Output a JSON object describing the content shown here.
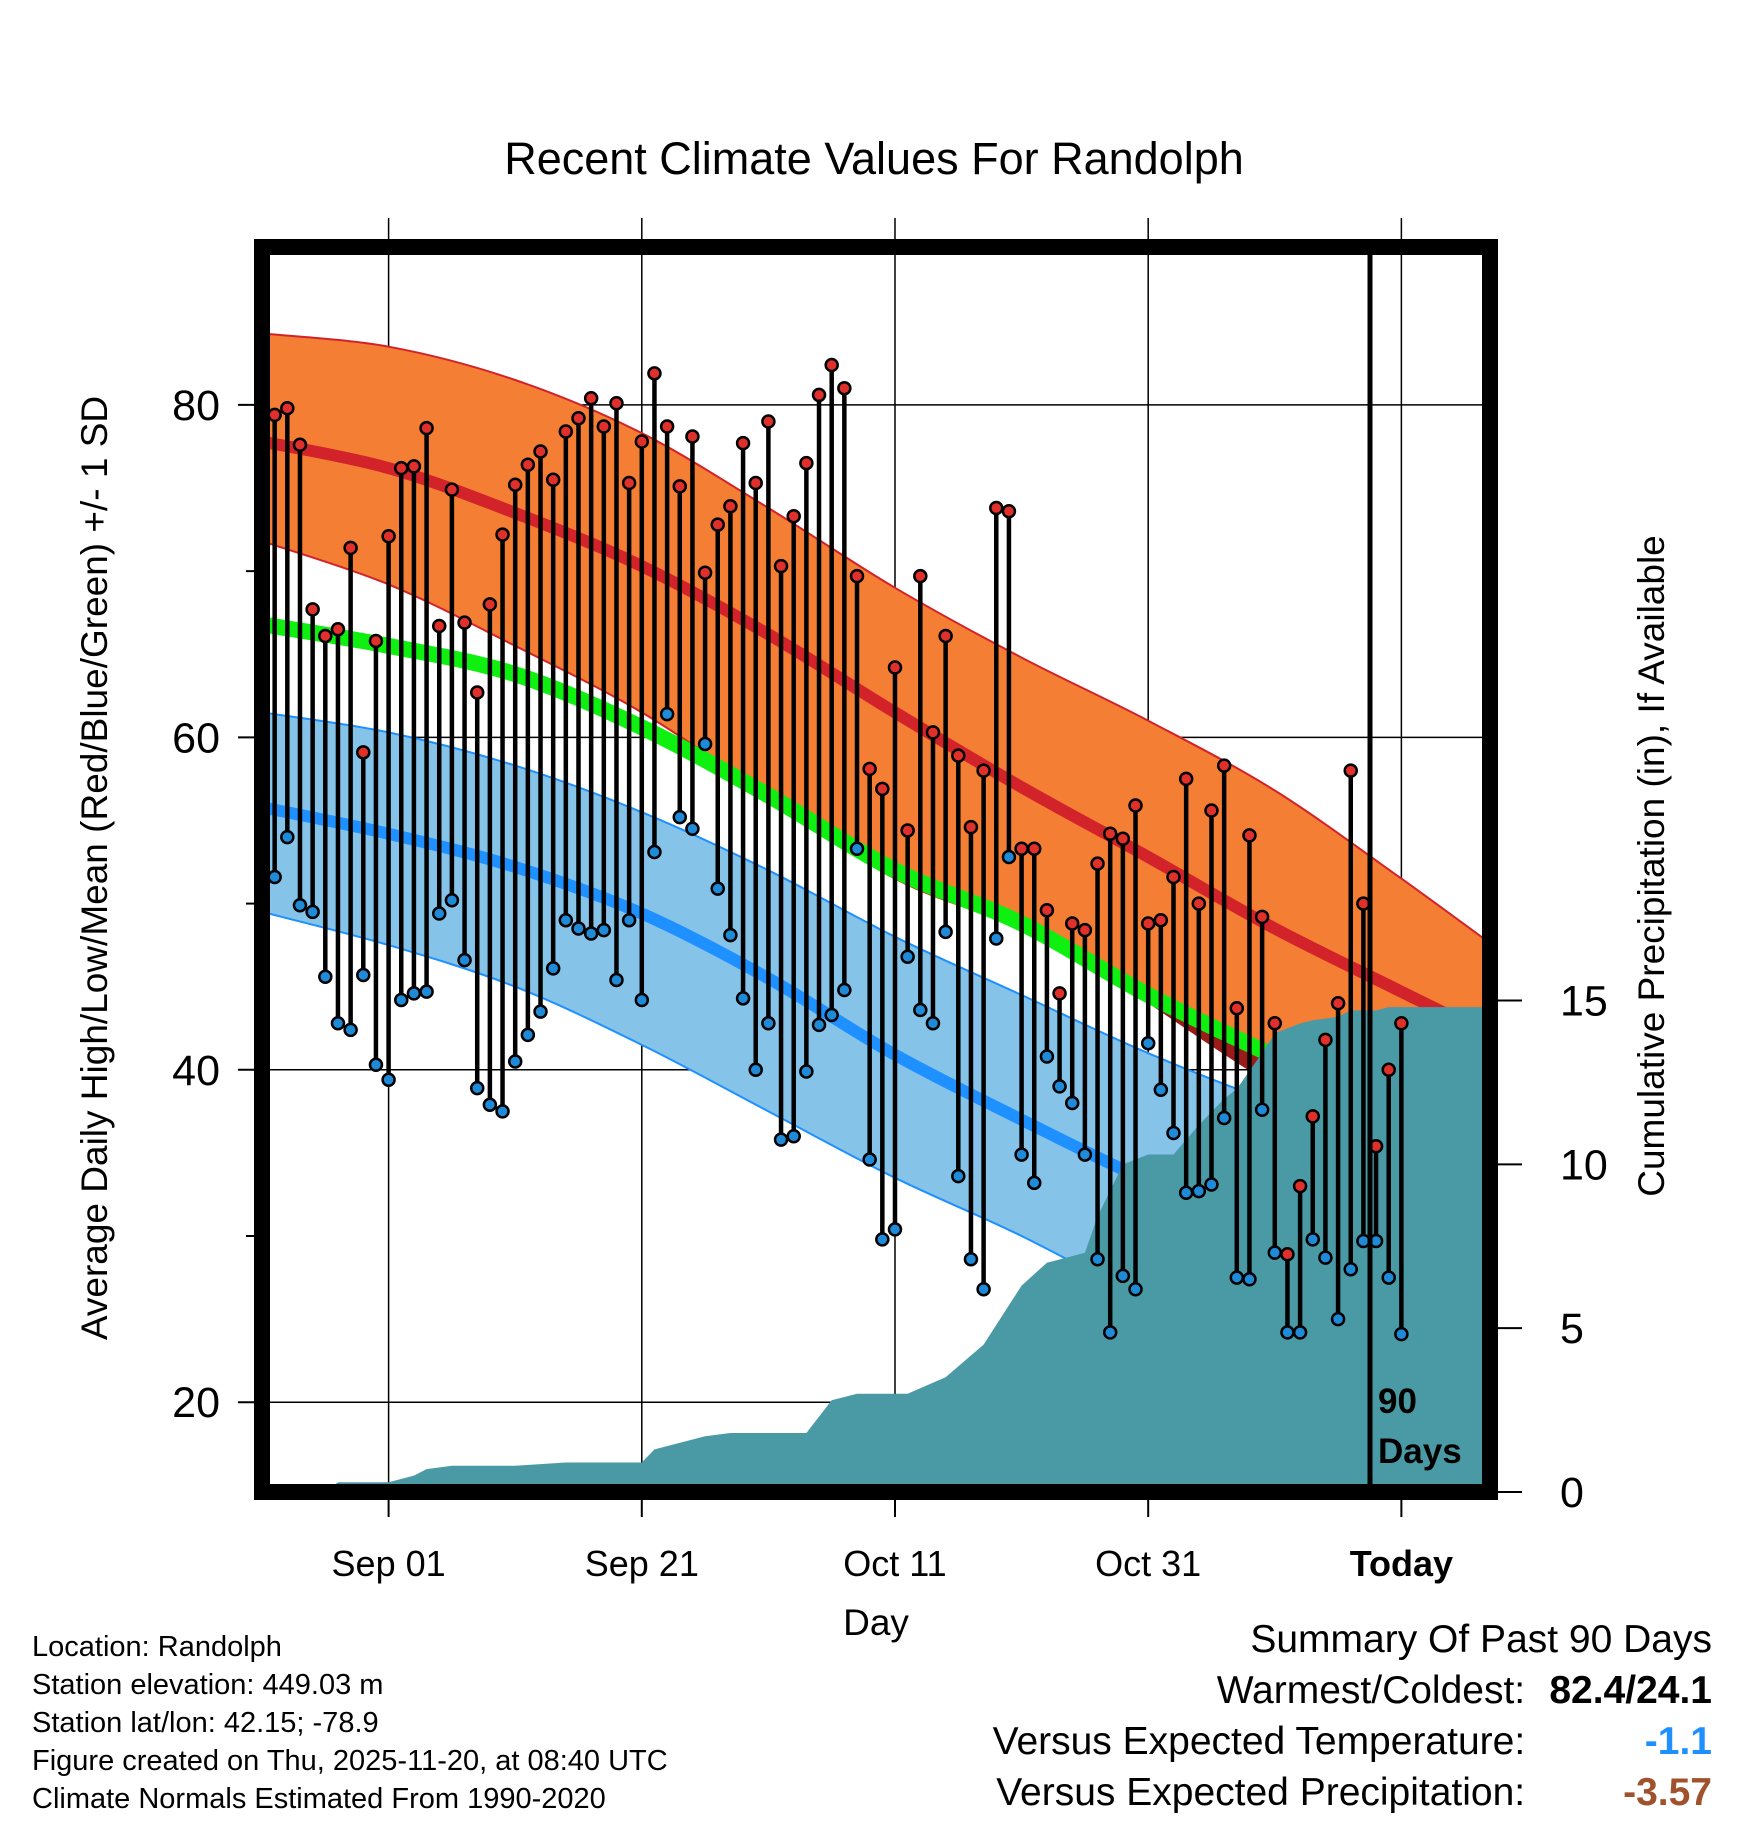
{
  "chart_data": {
    "type": "line",
    "title": "Recent Climate Values For Randolph",
    "xlabel": "Day",
    "ylabel_left": "Average Daily High/Low/Mean (Red/Blue/Green) +/- 1 SD",
    "ylabel_right": "Cumulative Precipitation (in), If Available",
    "x_range_days": [
      -90,
      7
    ],
    "y_range": [
      14.6,
      89.5
    ],
    "y2_range": [
      0,
      38
    ],
    "x_tick_labels": [
      {
        "day": -80,
        "label": "Sep 01"
      },
      {
        "day": -60,
        "label": "Sep 21"
      },
      {
        "day": -40,
        "label": "Oct 11"
      },
      {
        "day": -20,
        "label": "Oct 31"
      },
      {
        "day": 0,
        "label": "Today"
      }
    ],
    "y_ticks": [
      20,
      40,
      60,
      80
    ],
    "y_minor_ticks": [
      30,
      50,
      70
    ],
    "y2_ticks": [
      0,
      5,
      10,
      15
    ],
    "today_marker": "90\nDays",
    "normals": {
      "days": [
        -90,
        -80,
        -70,
        -60,
        -50,
        -40,
        -30,
        -20,
        -10,
        0,
        9
      ],
      "high_mean": [
        77.8,
        76.2,
        73.5,
        70.3,
        66.2,
        61.5,
        57.0,
        52.8,
        48.5,
        44.7,
        41.3
      ],
      "high_sd_upper": [
        84.3,
        83.5,
        81.5,
        78.3,
        73.8,
        69.0,
        64.8,
        61.0,
        56.8,
        51.5,
        46.5
      ],
      "high_sd_lower": [
        71.8,
        69.2,
        65.5,
        61.5,
        56.5,
        51.5,
        48.5,
        44.7,
        40.5,
        36.0,
        31.5
      ],
      "mean": [
        66.8,
        65.5,
        63.8,
        60.6,
        56.5,
        52.0,
        48.8,
        44.5,
        40.8,
        37.2,
        34.0
      ],
      "low_mean": [
        55.8,
        54.2,
        52.2,
        49.4,
        45.5,
        40.9,
        37.0,
        33.3,
        30.2,
        28.1,
        26.5
      ],
      "low_sd_upper": [
        61.5,
        60.3,
        58.3,
        55.5,
        52.0,
        48.0,
        44.5,
        41.0,
        38.0,
        35.5,
        34.5
      ],
      "low_sd_lower": [
        49.5,
        47.5,
        45.0,
        41.5,
        37.5,
        33.5,
        30.0,
        26.0,
        22.0,
        20.0,
        19.0
      ]
    },
    "series": [
      {
        "name": "Daily High",
        "color": "#e0302c",
        "values": [
          79.4,
          79.8,
          77.6,
          67.7,
          66.1,
          66.5,
          71.4,
          59.1,
          65.8,
          72.1,
          76.2,
          76.3,
          78.6,
          66.7,
          74.9,
          66.9,
          62.7,
          68.0,
          72.2,
          75.2,
          76.4,
          77.2,
          75.5,
          78.4,
          79.2,
          80.4,
          78.7,
          80.1,
          75.3,
          77.8,
          81.9,
          78.7,
          75.1,
          78.1,
          69.9,
          72.8,
          73.9,
          77.7,
          75.3,
          79.0,
          70.3,
          73.3,
          76.5,
          80.6,
          82.4,
          81.0,
          69.7,
          58.1,
          56.9,
          64.2,
          54.4,
          69.7,
          60.3,
          66.1,
          58.9,
          54.6,
          58.0,
          73.8,
          73.6,
          53.3,
          53.3,
          49.6,
          44.6,
          48.8,
          48.4,
          52.4,
          54.2,
          53.9,
          55.9,
          48.8,
          49.0,
          51.6,
          57.5,
          50.0,
          55.6,
          58.3,
          43.7,
          54.1,
          49.2,
          42.8,
          28.9,
          33.0,
          37.2,
          41.8,
          44.0,
          58.0,
          50.0,
          35.4,
          40.0,
          42.8
        ]
      },
      {
        "name": "Daily Low",
        "color": "#1f8ad8",
        "values": [
          51.6,
          54.0,
          49.9,
          49.5,
          45.6,
          42.8,
          42.4,
          45.7,
          40.3,
          39.4,
          44.2,
          44.6,
          44.7,
          49.4,
          50.2,
          46.6,
          38.9,
          37.9,
          37.5,
          40.5,
          42.1,
          43.5,
          46.1,
          49.0,
          48.5,
          48.2,
          48.4,
          45.4,
          49.0,
          44.2,
          53.1,
          61.4,
          55.2,
          54.5,
          59.6,
          50.9,
          48.1,
          44.3,
          40.0,
          42.8,
          35.8,
          36.0,
          39.9,
          42.7,
          43.3,
          44.8,
          53.3,
          34.6,
          29.8,
          30.4,
          46.8,
          43.6,
          42.8,
          48.3,
          33.6,
          28.6,
          26.8,
          47.9,
          52.8,
          34.9,
          33.2,
          40.8,
          39.0,
          38.0,
          34.9,
          28.6,
          24.2,
          27.6,
          26.8,
          41.6,
          38.8,
          36.2,
          32.6,
          32.7,
          33.1,
          37.1,
          27.5,
          27.4,
          37.6,
          29.0,
          24.2,
          24.2,
          29.8,
          28.7,
          25.0,
          28.0,
          29.7,
          29.7,
          27.5,
          24.1
        ]
      }
    ],
    "cumulative_precip_days": [
      -90,
      -85,
      -84,
      -80,
      -78,
      -77,
      -75,
      -70,
      -66,
      -60,
      -59,
      -58,
      -55,
      -53,
      -50,
      -47,
      -45,
      -43,
      -41,
      -39,
      -36,
      -33,
      -32,
      -30,
      -28,
      -26,
      -25,
      -24,
      -22,
      -20,
      -19,
      -18,
      -16,
      -14,
      -13,
      -11,
      -10,
      -8,
      -7,
      -5,
      -4,
      -2,
      -1,
      0,
      9
    ],
    "cumulative_precip": [
      0,
      0,
      0.3,
      0.3,
      0.5,
      0.7,
      0.8,
      0.8,
      0.9,
      0.9,
      1.3,
      1.4,
      1.7,
      1.8,
      1.8,
      1.8,
      2.8,
      3.0,
      3.0,
      3.0,
      3.5,
      4.5,
      5.1,
      6.3,
      7.0,
      7.2,
      7.3,
      8.4,
      10.0,
      10.3,
      10.3,
      10.3,
      11.2,
      12.0,
      12.3,
      13.4,
      14.0,
      14.3,
      14.4,
      14.5,
      14.7,
      14.7,
      14.8,
      14.8,
      14.8
    ],
    "colors": {
      "high_band": "#f47e33",
      "high_line": "#d2232a",
      "mean_band": "#10f010",
      "low_band": "#86c3e8",
      "low_line": "#1e90ff",
      "precip": "#4a9aa5",
      "below_mean": "#9b1b1b"
    }
  },
  "info": {
    "location": "Location: Randolph",
    "elevation": "Station elevation: 449.03 m",
    "latlon": "Station lat/lon: 42.15; -78.9",
    "created": "Figure created on Thu, 2025-11-20, at 08:40 UTC",
    "normals": "Climate Normals Estimated From 1990-2020"
  },
  "summary": {
    "title": "Summary Of Past 90 Days",
    "warm_cold_label": "Warmest/Coldest:",
    "warm_cold_value": "82.4/24.1",
    "temp_label": "Versus Expected Temperature:",
    "temp_value": "-1.1",
    "temp_color": "#1e90ff",
    "precip_label": "Versus Expected Precipitation:",
    "precip_value": "-3.57",
    "precip_color": "#a0522d"
  }
}
